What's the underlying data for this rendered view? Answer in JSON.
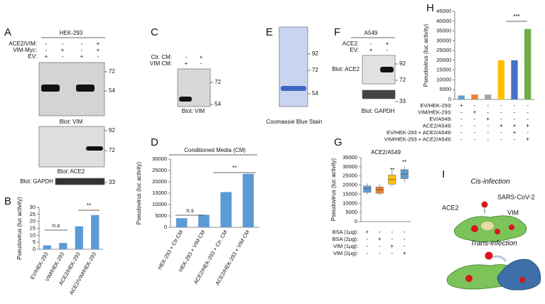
{
  "panel_labels": [
    "A",
    "B",
    "C",
    "D",
    "E",
    "F",
    "G",
    "H",
    "I"
  ],
  "blots": {
    "A": {
      "header": "HEK-293",
      "conditions": [
        {
          "label": "ACE2/VIM:",
          "signs": [
            "-",
            "-",
            "-",
            "+"
          ]
        },
        {
          "label": "VIM-Myc:",
          "signs": [
            "-",
            "+",
            "-",
            "+"
          ]
        },
        {
          "label": "EV:",
          "signs": [
            "+",
            "-",
            "+",
            "-"
          ]
        }
      ],
      "panels": [
        {
          "caption": "Blot: VIM",
          "markers": [
            72,
            54
          ]
        },
        {
          "caption": "Blot: ACE2",
          "markers": [
            92,
            72
          ]
        },
        {
          "caption": "Blot: GAPDH",
          "markers": [
            33
          ]
        }
      ]
    },
    "C": {
      "conditions": [
        {
          "label": "Ctr. CM:",
          "signs": [
            "-",
            "+"
          ]
        },
        {
          "label": "VIM CM:",
          "signs": [
            "+",
            "-"
          ]
        }
      ],
      "panels": [
        {
          "caption": "Blot: VIM",
          "markers": [
            72,
            54
          ]
        }
      ]
    },
    "E": {
      "panels": [
        {
          "caption": "Coomassie Blue Stain",
          "markers": [
            92,
            72,
            54
          ]
        }
      ]
    },
    "F": {
      "header": "A549",
      "conditions": [
        {
          "label": "ACE2:",
          "signs": [
            "-",
            "+"
          ]
        },
        {
          "label": "EV:",
          "signs": [
            "+",
            "-"
          ]
        }
      ],
      "panels": [
        {
          "caption": "Blot: ACE2",
          "markers": [
            92,
            72
          ]
        },
        {
          "caption": "Blot: GAPDH",
          "markers": [
            33
          ]
        }
      ]
    }
  },
  "chart_data": [
    {
      "type": "bar",
      "y_label": "Pseudovirus (luc activity)",
      "categories": [
        "EV/HEK-293",
        "VIM/HEK-293",
        "ACE2/HEK-293",
        "ACE2/VIM/HEK-293"
      ],
      "values": [
        2.8,
        4.5,
        16.5,
        24.5
      ],
      "color": "#5b9bd5",
      "ylim": [
        0,
        30
      ],
      "yticks": [
        0,
        5,
        10,
        15,
        20,
        25,
        30
      ],
      "annotations": [
        "n.s",
        "**"
      ]
    },
    {
      "type": "bar",
      "title": "Conditioned Media (CM)",
      "y_label": "Pseudovirus (luc activity)",
      "categories": [
        "HEK-293 + Ctr.CM",
        "HEK-293 + VIM CM",
        "ACE2/HEK-293 + Ctr. CM",
        "ACE2/HEK-293 + VIM CM"
      ],
      "values": [
        4000,
        5500,
        15500,
        23500
      ],
      "color": "#5b9bd5",
      "ylim": [
        0,
        30000
      ],
      "yticks": [
        0,
        5000,
        10000,
        15000,
        20000,
        25000,
        30000
      ],
      "annotations": [
        "n.s",
        "**"
      ]
    },
    {
      "type": "box",
      "title": "ACE2/A549",
      "y_label": "Pseudovirus (luc activity)",
      "boxes": [
        {
          "color": "#5b9bd5",
          "min": 15000,
          "q1": 16000,
          "median": 18000,
          "q3": 19500,
          "max": 21000
        },
        {
          "color": "#ed7d31",
          "min": 14500,
          "q1": 15500,
          "median": 17500,
          "q3": 19000,
          "max": 20500
        },
        {
          "color": "#ffc000",
          "min": 19000,
          "q1": 20500,
          "median": 23000,
          "q3": 25500,
          "max": 28500
        },
        {
          "color": "#5b9bd5",
          "min": 21500,
          "q1": 23500,
          "median": 26000,
          "q3": 28500,
          "max": 30000
        }
      ],
      "ylim": [
        0,
        35000
      ],
      "yticks": [
        0,
        5000,
        10000,
        15000,
        20000,
        25000,
        30000,
        35000
      ],
      "conditions": [
        {
          "label": "BSA (1µg):",
          "signs": [
            "+",
            "-",
            "-",
            "-"
          ]
        },
        {
          "label": "BSA (2µg):",
          "signs": [
            "-",
            "+",
            "-",
            "-"
          ]
        },
        {
          "label": "VIM (1µg):",
          "signs": [
            "-",
            "-",
            "+",
            "-"
          ]
        },
        {
          "label": "VIM (2µg):",
          "signs": [
            "-",
            "-",
            "-",
            "+"
          ]
        }
      ],
      "annotations": [
        "**",
        "**"
      ]
    },
    {
      "type": "bar",
      "y_label": "Pseudovirus (luc activity)",
      "values": [
        2000,
        2500,
        2500,
        20000,
        20000,
        36000
      ],
      "colors": [
        "#5b9bd5",
        "#ed7d31",
        "#a5a5a5",
        "#ffc000",
        "#4472c4",
        "#70ad47"
      ],
      "ylim": [
        0,
        45000
      ],
      "yticks": [
        0,
        5000,
        10000,
        15000,
        20000,
        25000,
        30000,
        35000,
        40000,
        45000
      ],
      "conditions": [
        {
          "label": "EV/HEK-293:",
          "signs": [
            "+",
            "-",
            "-",
            "-",
            "-",
            "-"
          ]
        },
        {
          "label": "VIM/HEK-293:",
          "signs": [
            "-",
            "+",
            "-",
            "-",
            "-",
            "-"
          ]
        },
        {
          "label": "EV/A549:",
          "signs": [
            "-",
            "-",
            "+",
            "-",
            "-",
            "-"
          ]
        },
        {
          "label": "ACE2/A549:",
          "signs": [
            "-",
            "-",
            "-",
            "+",
            "+",
            "+"
          ]
        },
        {
          "label": "EV/HEK-293 + ACE2/A549:",
          "signs": [
            "-",
            "-",
            "-",
            "-",
            "+",
            "-"
          ]
        },
        {
          "label": "VIM/HEK-293 + ACE2/A549:",
          "signs": [
            "-",
            "-",
            "-",
            "-",
            "-",
            "+"
          ]
        }
      ],
      "annotations": [
        "***"
      ]
    }
  ],
  "diagram": {
    "cis_title": "Cis-infection",
    "trans_title": "Trans-infection",
    "virus": "SARS-CoV-2",
    "receptor": "ACE2",
    "vimentin": "VIM"
  }
}
